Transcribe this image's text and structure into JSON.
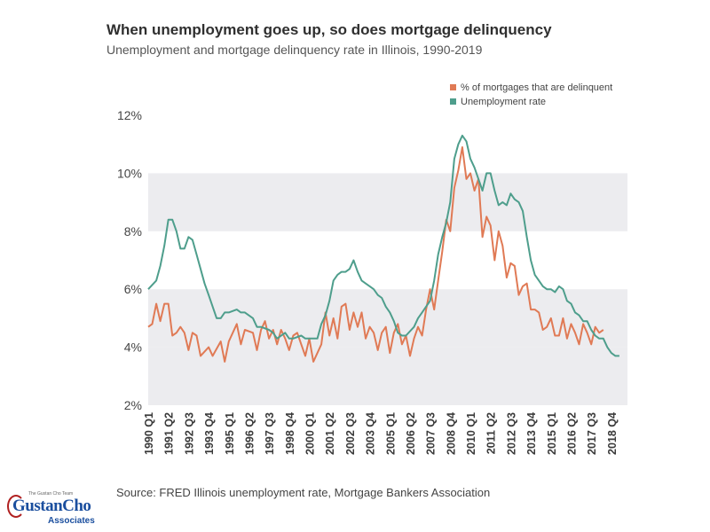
{
  "header": {
    "title": "When unemployment goes up, so does mortgage delinquency",
    "subtitle": "Unemployment and mortgage delinquency rate in Illinois, 1990-2019"
  },
  "source": "Source:  FRED Illinois unemployment rate, Mortgage Bankers Association",
  "logo": {
    "small_text": "The Gustan Cho Team",
    "main_text": "GustanCho",
    "sub_text": "Associates"
  },
  "chart_data": {
    "type": "line",
    "ylim": [
      2,
      12
    ],
    "yticks": [
      2,
      4,
      6,
      8,
      10,
      12
    ],
    "ytick_labels": [
      "2%",
      "4%",
      "6%",
      "8%",
      "10%",
      "12%"
    ],
    "xlim": [
      1990.0,
      2019.75
    ],
    "xticks": [
      1990.0,
      1991.25,
      1992.5,
      1993.75,
      1995.0,
      1996.25,
      1997.5,
      1998.75,
      2000.0,
      2001.25,
      2002.5,
      2003.75,
      2005.0,
      2006.25,
      2007.5,
      2008.75,
      2010.0,
      2011.25,
      2012.5,
      2013.75,
      2015.0,
      2016.25,
      2017.5,
      2018.75
    ],
    "xtick_labels": [
      "1990 Q1",
      "1991 Q2",
      "1992 Q3",
      "1993 Q4",
      "1995 Q1",
      "1996 Q2",
      "1997 Q3",
      "1998 Q4",
      "2000 Q1",
      "2001 Q2",
      "2002 Q3",
      "2003 Q4",
      "2005 Q1",
      "2006 Q2",
      "2007 Q3",
      "2008 Q4",
      "2010 Q1",
      "2011 Q2",
      "2012 Q3",
      "2013 Q4",
      "2015 Q1",
      "2016 Q2",
      "2017 Q3",
      "2018 Q4"
    ],
    "grid": "horizontal bands",
    "legend_position": "top-right",
    "series": [
      {
        "name": "% of mortgages that are delinquent",
        "color": "#e07a55",
        "points": [
          [
            1990.0,
            4.7
          ],
          [
            1990.25,
            4.8
          ],
          [
            1990.5,
            5.5
          ],
          [
            1990.75,
            4.9
          ],
          [
            1991.0,
            5.5
          ],
          [
            1991.25,
            5.5
          ],
          [
            1991.5,
            4.4
          ],
          [
            1991.75,
            4.5
          ],
          [
            1992.0,
            4.7
          ],
          [
            1992.25,
            4.5
          ],
          [
            1992.5,
            3.9
          ],
          [
            1992.75,
            4.5
          ],
          [
            1993.0,
            4.4
          ],
          [
            1993.25,
            3.7
          ],
          [
            1993.75,
            4.0
          ],
          [
            1994.0,
            3.7
          ],
          [
            1994.5,
            4.2
          ],
          [
            1994.75,
            3.5
          ],
          [
            1995.0,
            4.2
          ],
          [
            1995.5,
            4.8
          ],
          [
            1995.75,
            4.1
          ],
          [
            1996.0,
            4.6
          ],
          [
            1996.5,
            4.5
          ],
          [
            1996.75,
            3.9
          ],
          [
            1997.0,
            4.6
          ],
          [
            1997.25,
            4.9
          ],
          [
            1997.5,
            4.3
          ],
          [
            1997.75,
            4.6
          ],
          [
            1998.0,
            4.1
          ],
          [
            1998.25,
            4.6
          ],
          [
            1998.5,
            4.3
          ],
          [
            1998.75,
            3.9
          ],
          [
            1999.0,
            4.4
          ],
          [
            1999.25,
            4.5
          ],
          [
            1999.5,
            4.1
          ],
          [
            1999.75,
            3.7
          ],
          [
            2000.0,
            4.3
          ],
          [
            2000.25,
            3.5
          ],
          [
            2000.75,
            4.1
          ],
          [
            2001.0,
            5.2
          ],
          [
            2001.25,
            4.4
          ],
          [
            2001.5,
            5.0
          ],
          [
            2001.75,
            4.3
          ],
          [
            2002.0,
            5.4
          ],
          [
            2002.25,
            5.5
          ],
          [
            2002.5,
            4.6
          ],
          [
            2002.75,
            5.2
          ],
          [
            2003.0,
            4.7
          ],
          [
            2003.25,
            5.2
          ],
          [
            2003.5,
            4.3
          ],
          [
            2003.75,
            4.7
          ],
          [
            2004.0,
            4.5
          ],
          [
            2004.25,
            3.9
          ],
          [
            2004.5,
            4.5
          ],
          [
            2004.75,
            4.7
          ],
          [
            2005.0,
            3.8
          ],
          [
            2005.25,
            4.5
          ],
          [
            2005.5,
            4.8
          ],
          [
            2005.75,
            4.1
          ],
          [
            2006.0,
            4.4
          ],
          [
            2006.25,
            3.7
          ],
          [
            2006.5,
            4.3
          ],
          [
            2006.75,
            4.7
          ],
          [
            2007.0,
            4.4
          ],
          [
            2007.25,
            5.3
          ],
          [
            2007.5,
            6.0
          ],
          [
            2007.75,
            5.3
          ],
          [
            2008.0,
            6.3
          ],
          [
            2008.25,
            7.3
          ],
          [
            2008.5,
            8.4
          ],
          [
            2008.75,
            8.0
          ],
          [
            2009.0,
            9.5
          ],
          [
            2009.25,
            10.1
          ],
          [
            2009.5,
            10.9
          ],
          [
            2009.75,
            9.8
          ],
          [
            2010.0,
            10.0
          ],
          [
            2010.25,
            9.4
          ],
          [
            2010.5,
            9.8
          ],
          [
            2010.75,
            7.8
          ],
          [
            2011.0,
            8.5
          ],
          [
            2011.25,
            8.2
          ],
          [
            2011.5,
            7.0
          ],
          [
            2011.75,
            8.0
          ],
          [
            2012.0,
            7.5
          ],
          [
            2012.25,
            6.4
          ],
          [
            2012.5,
            6.9
          ],
          [
            2012.75,
            6.8
          ],
          [
            2013.0,
            5.8
          ],
          [
            2013.25,
            6.1
          ],
          [
            2013.5,
            6.2
          ],
          [
            2013.75,
            5.3
          ],
          [
            2014.0,
            5.3
          ],
          [
            2014.25,
            5.2
          ],
          [
            2014.5,
            4.6
          ],
          [
            2014.75,
            4.7
          ],
          [
            2015.0,
            5.0
          ],
          [
            2015.25,
            4.4
          ],
          [
            2015.5,
            4.4
          ],
          [
            2015.75,
            5.0
          ],
          [
            2016.0,
            4.3
          ],
          [
            2016.25,
            4.8
          ],
          [
            2016.5,
            4.5
          ],
          [
            2016.75,
            4.1
          ],
          [
            2017.0,
            4.8
          ],
          [
            2017.25,
            4.5
          ],
          [
            2017.5,
            4.1
          ],
          [
            2017.75,
            4.7
          ],
          [
            2018.0,
            4.5
          ],
          [
            2018.25,
            4.6
          ]
        ]
      },
      {
        "name": "Unemployment rate",
        "color": "#4e9e8c",
        "points": [
          [
            1990.0,
            6.0
          ],
          [
            1990.5,
            6.3
          ],
          [
            1990.75,
            6.8
          ],
          [
            1991.0,
            7.5
          ],
          [
            1991.25,
            8.4
          ],
          [
            1991.5,
            8.4
          ],
          [
            1991.75,
            8.0
          ],
          [
            1992.0,
            7.4
          ],
          [
            1992.25,
            7.4
          ],
          [
            1992.5,
            7.8
          ],
          [
            1992.75,
            7.7
          ],
          [
            1993.0,
            7.2
          ],
          [
            1993.25,
            6.7
          ],
          [
            1993.5,
            6.2
          ],
          [
            1993.75,
            5.8
          ],
          [
            1994.0,
            5.4
          ],
          [
            1994.25,
            5.0
          ],
          [
            1994.5,
            5.0
          ],
          [
            1994.75,
            5.2
          ],
          [
            1995.0,
            5.2
          ],
          [
            1995.5,
            5.3
          ],
          [
            1995.75,
            5.2
          ],
          [
            1996.0,
            5.2
          ],
          [
            1996.5,
            5.0
          ],
          [
            1996.75,
            4.7
          ],
          [
            1997.0,
            4.7
          ],
          [
            1997.5,
            4.6
          ],
          [
            1997.75,
            4.5
          ],
          [
            1998.0,
            4.3
          ],
          [
            1998.5,
            4.5
          ],
          [
            1998.75,
            4.3
          ],
          [
            1999.0,
            4.3
          ],
          [
            1999.5,
            4.4
          ],
          [
            1999.75,
            4.3
          ],
          [
            2000.0,
            4.3
          ],
          [
            2000.5,
            4.3
          ],
          [
            2000.75,
            4.8
          ],
          [
            2001.0,
            5.1
          ],
          [
            2001.25,
            5.6
          ],
          [
            2001.5,
            6.3
          ],
          [
            2001.75,
            6.5
          ],
          [
            2002.0,
            6.6
          ],
          [
            2002.25,
            6.6
          ],
          [
            2002.5,
            6.7
          ],
          [
            2002.75,
            7.0
          ],
          [
            2003.0,
            6.6
          ],
          [
            2003.25,
            6.3
          ],
          [
            2003.5,
            6.2
          ],
          [
            2003.75,
            6.1
          ],
          [
            2004.0,
            6.0
          ],
          [
            2004.25,
            5.8
          ],
          [
            2004.5,
            5.7
          ],
          [
            2004.75,
            5.4
          ],
          [
            2005.0,
            5.2
          ],
          [
            2005.25,
            4.9
          ],
          [
            2005.5,
            4.5
          ],
          [
            2005.75,
            4.4
          ],
          [
            2006.0,
            4.4
          ],
          [
            2006.5,
            4.7
          ],
          [
            2006.75,
            5.0
          ],
          [
            2007.0,
            5.2
          ],
          [
            2007.25,
            5.4
          ],
          [
            2007.5,
            5.6
          ],
          [
            2007.75,
            6.3
          ],
          [
            2008.0,
            7.2
          ],
          [
            2008.25,
            7.8
          ],
          [
            2008.5,
            8.3
          ],
          [
            2008.75,
            9.0
          ],
          [
            2009.0,
            10.5
          ],
          [
            2009.25,
            11.0
          ],
          [
            2009.5,
            11.3
          ],
          [
            2009.75,
            11.1
          ],
          [
            2010.0,
            10.5
          ],
          [
            2010.25,
            10.2
          ],
          [
            2010.5,
            9.8
          ],
          [
            2010.75,
            9.4
          ],
          [
            2011.0,
            10.0
          ],
          [
            2011.25,
            10.0
          ],
          [
            2011.5,
            9.4
          ],
          [
            2011.75,
            8.9
          ],
          [
            2012.0,
            9.0
          ],
          [
            2012.25,
            8.9
          ],
          [
            2012.5,
            9.3
          ],
          [
            2012.75,
            9.1
          ],
          [
            2013.0,
            9.0
          ],
          [
            2013.25,
            8.7
          ],
          [
            2013.5,
            7.8
          ],
          [
            2013.75,
            7.0
          ],
          [
            2014.0,
            6.5
          ],
          [
            2014.25,
            6.3
          ],
          [
            2014.5,
            6.1
          ],
          [
            2014.75,
            6.0
          ],
          [
            2015.0,
            6.0
          ],
          [
            2015.25,
            5.9
          ],
          [
            2015.5,
            6.1
          ],
          [
            2015.75,
            6.0
          ],
          [
            2016.0,
            5.6
          ],
          [
            2016.25,
            5.5
          ],
          [
            2016.5,
            5.2
          ],
          [
            2016.75,
            5.1
          ],
          [
            2017.0,
            4.9
          ],
          [
            2017.25,
            4.9
          ],
          [
            2017.5,
            4.6
          ],
          [
            2017.75,
            4.4
          ],
          [
            2018.0,
            4.3
          ],
          [
            2018.25,
            4.3
          ],
          [
            2018.5,
            4.0
          ],
          [
            2018.75,
            3.8
          ],
          [
            2019.0,
            3.7
          ],
          [
            2019.25,
            3.7
          ]
        ]
      }
    ]
  }
}
